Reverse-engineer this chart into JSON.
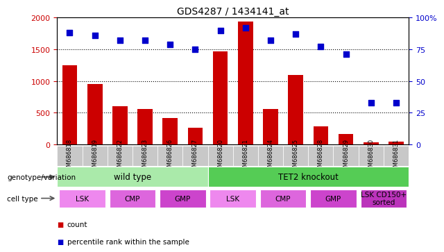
{
  "title": "GDS4287 / 1434141_at",
  "samples": [
    "GSM686818",
    "GSM686819",
    "GSM686822",
    "GSM686823",
    "GSM686826",
    "GSM686827",
    "GSM686820",
    "GSM686821",
    "GSM686824",
    "GSM686825",
    "GSM686828",
    "GSM686829",
    "GSM686830",
    "GSM686831"
  ],
  "counts": [
    1250,
    950,
    600,
    560,
    420,
    260,
    1470,
    1940,
    560,
    1100,
    280,
    160,
    30,
    40
  ],
  "percentiles": [
    88,
    86,
    82,
    82,
    79,
    75,
    90,
    92,
    82,
    87,
    77,
    71,
    33,
    33
  ],
  "bar_color": "#cc0000",
  "dot_color": "#0000cc",
  "ylim_left": [
    0,
    2000
  ],
  "ylim_right": [
    0,
    100
  ],
  "yticks_left": [
    0,
    500,
    1000,
    1500,
    2000
  ],
  "ytick_labels_left": [
    "0",
    "500",
    "1000",
    "1500",
    "2000"
  ],
  "yticks_right": [
    0,
    25,
    50,
    75,
    100
  ],
  "ytick_labels_right": [
    "0",
    "25",
    "50",
    "75",
    "100%"
  ],
  "grid_values": [
    500,
    1000,
    1500
  ],
  "genotype_groups": [
    {
      "name": "wild type",
      "start": 0,
      "end": 6,
      "color": "#aaeaaa"
    },
    {
      "name": "TET2 knockout",
      "start": 6,
      "end": 14,
      "color": "#55cc55"
    }
  ],
  "celltype_groups": [
    {
      "name": "LSK",
      "start": 0,
      "end": 2,
      "color": "#ee88ee"
    },
    {
      "name": "CMP",
      "start": 2,
      "end": 4,
      "color": "#dd66dd"
    },
    {
      "name": "GMP",
      "start": 4,
      "end": 6,
      "color": "#cc44cc"
    },
    {
      "name": "LSK",
      "start": 6,
      "end": 8,
      "color": "#ee88ee"
    },
    {
      "name": "CMP",
      "start": 8,
      "end": 10,
      "color": "#dd66dd"
    },
    {
      "name": "GMP",
      "start": 10,
      "end": 12,
      "color": "#cc44cc"
    },
    {
      "name": "LSK CD150+\nsorted",
      "start": 12,
      "end": 14,
      "color": "#bb33bb"
    }
  ],
  "legend_items": [
    {
      "label": "count",
      "color": "#cc0000"
    },
    {
      "label": "percentile rank within the sample",
      "color": "#0000cc"
    }
  ],
  "sample_bg": "#c8c8c8",
  "bar_width": 0.6,
  "dot_size": 40,
  "genotype_label": "genotype/variation",
  "celltype_label": "cell type"
}
